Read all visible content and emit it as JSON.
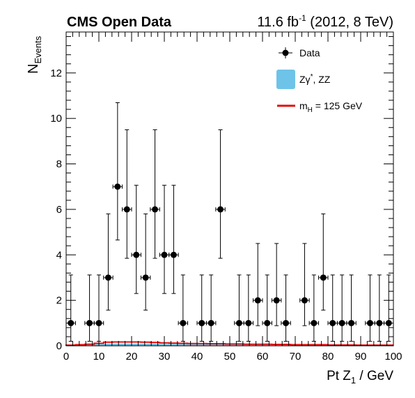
{
  "header": {
    "experiment": "CMS Open Data",
    "lumi_value": "11.6 fb",
    "lumi_exp": "-1",
    "lumi_tail": " (2012, 8 TeV)"
  },
  "chart_data": {
    "type": "scatter",
    "xlabel_main": "Pt Z",
    "xlabel_sub": "1",
    "xlabel_unit": " / GeV",
    "ylabel_main": "N",
    "ylabel_sub": "Events",
    "xlim": [
      0,
      100
    ],
    "ylim": [
      0,
      13.8
    ],
    "x_ticks": [
      0,
      10,
      20,
      30,
      40,
      50,
      60,
      70,
      80,
      90,
      100
    ],
    "y_ticks": [
      0,
      2,
      4,
      6,
      8,
      10,
      12
    ],
    "bin_width": 2.857,
    "legend_position": "top-right",
    "legend": {
      "data_label": "Data",
      "bkg_label_prefix": "Zγ",
      "bkg_label_sup": "*",
      "bkg_label_suffix": ", ZZ",
      "sig_label_main": "m",
      "sig_label_sub": "H",
      "sig_label_suffix": " = 125 GeV"
    },
    "series": [
      {
        "name": "Data",
        "color": "#000000",
        "x": [
          1.43,
          7.14,
          10.0,
          12.86,
          15.71,
          18.57,
          21.43,
          24.29,
          27.14,
          30.0,
          32.86,
          35.71,
          41.43,
          44.29,
          47.14,
          52.86,
          55.71,
          58.57,
          61.43,
          64.29,
          67.14,
          72.86,
          75.71,
          78.57,
          81.43,
          84.29,
          87.14,
          92.86,
          95.71,
          98.57
        ],
        "y": [
          1,
          1,
          1,
          3,
          7,
          6,
          4,
          3,
          6,
          4,
          4,
          1,
          1,
          1,
          6,
          1,
          1,
          2,
          1,
          2,
          1,
          2,
          1,
          3,
          1,
          1,
          1,
          1,
          1,
          1
        ]
      },
      {
        "name": "Zγ*, ZZ",
        "color": "#6ec3e8",
        "x": [
          0,
          2.857,
          5.714,
          8.571,
          11.43,
          14.29,
          17.14,
          20.0,
          22.86,
          25.71,
          28.57,
          31.43,
          34.29,
          37.14,
          40.0,
          42.86,
          45.71,
          48.57,
          51.43,
          54.29,
          57.14,
          60.0,
          62.86,
          65.71,
          68.57,
          71.43,
          74.29,
          77.14,
          80.0,
          82.86,
          85.71,
          88.57,
          91.43,
          94.29,
          97.14
        ],
        "y": [
          0.03,
          0.05,
          0.07,
          0.08,
          0.09,
          0.09,
          0.09,
          0.09,
          0.09,
          0.09,
          0.08,
          0.08,
          0.08,
          0.07,
          0.07,
          0.07,
          0.06,
          0.06,
          0.06,
          0.05,
          0.05,
          0.05,
          0.04,
          0.04,
          0.04,
          0.04,
          0.03,
          0.03,
          0.03,
          0.03,
          0.03,
          0.02,
          0.02,
          0.02,
          0.02
        ]
      },
      {
        "name": "mH = 125 GeV",
        "color": "#e0100f",
        "x": [
          0,
          2.857,
          5.714,
          8.571,
          11.43,
          14.29,
          17.14,
          20.0,
          22.86,
          25.71,
          28.57,
          31.43,
          34.29,
          37.14,
          40.0,
          42.86,
          45.71,
          48.57,
          51.43,
          54.29,
          57.14,
          60.0,
          62.86,
          65.71,
          68.57,
          71.43,
          74.29,
          77.14,
          80.0,
          82.86,
          85.71,
          88.57,
          91.43,
          94.29,
          97.14
        ],
        "y": [
          0.03,
          0.05,
          0.07,
          0.11,
          0.16,
          0.17,
          0.17,
          0.17,
          0.16,
          0.15,
          0.13,
          0.12,
          0.11,
          0.1,
          0.1,
          0.09,
          0.09,
          0.08,
          0.08,
          0.07,
          0.07,
          0.07,
          0.06,
          0.06,
          0.05,
          0.05,
          0.05,
          0.05,
          0.04,
          0.04,
          0.04,
          0.03,
          0.03,
          0.03,
          0.03
        ]
      }
    ]
  }
}
